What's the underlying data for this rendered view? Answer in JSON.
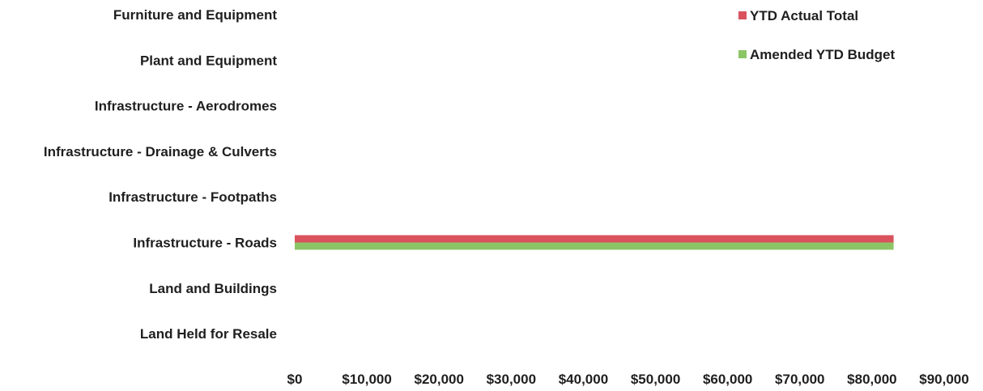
{
  "chart_data": {
    "type": "bar",
    "orientation": "horizontal",
    "categories": [
      "Furniture and Equipment",
      "Plant and Equipment",
      "Infrastructure - Aerodromes",
      "Infrastructure - Drainage & Culverts",
      "Infrastructure - Footpaths",
      "Infrastructure - Roads",
      "Land and Buildings",
      "Land Held for Resale"
    ],
    "series": [
      {
        "name": "YTD Actual Total",
        "color": "#d9525e",
        "values": [
          0,
          0,
          0,
          0,
          0,
          83000,
          0,
          0
        ]
      },
      {
        "name": "Amended YTD Budget",
        "color": "#8cc565",
        "values": [
          0,
          0,
          0,
          0,
          0,
          83000,
          0,
          0
        ]
      }
    ],
    "xlim": [
      0,
      90000
    ],
    "x_ticks": [
      0,
      10000,
      20000,
      30000,
      40000,
      50000,
      60000,
      70000,
      80000,
      90000
    ],
    "x_tick_labels": [
      "$0",
      "$10,000",
      "$20,000",
      "$30,000",
      "$40,000",
      "$50,000",
      "$60,000",
      "$70,000",
      "$80,000",
      "$90,000"
    ],
    "grid": false,
    "legend_position": "top-right"
  }
}
